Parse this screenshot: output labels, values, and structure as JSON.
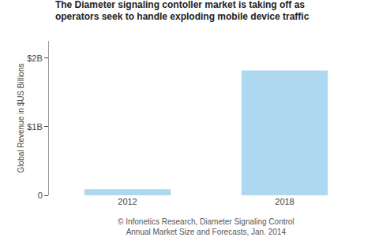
{
  "chart_data": {
    "type": "bar",
    "title": "The Diameter signaling contoller market is taking off as\noperators seek to handle exploding mobile device traffic",
    "categories": [
      "2012",
      "2018"
    ],
    "values": [
      0.09,
      1.82
    ],
    "color": "#add8f0",
    "ylabel": "Global Revenue in $US Billions",
    "ylim": [
      0,
      2.25
    ],
    "yticks": [
      0,
      {
        "value": 1,
        "label": "$1B"
      },
      {
        "value": 2,
        "label": "$2B"
      }
    ],
    "grid": false,
    "annotations": [
      "© Infonetics Research, Diameter Signaling Control",
      "Annual Market Size and Forecasts, Jan. 2014"
    ]
  }
}
